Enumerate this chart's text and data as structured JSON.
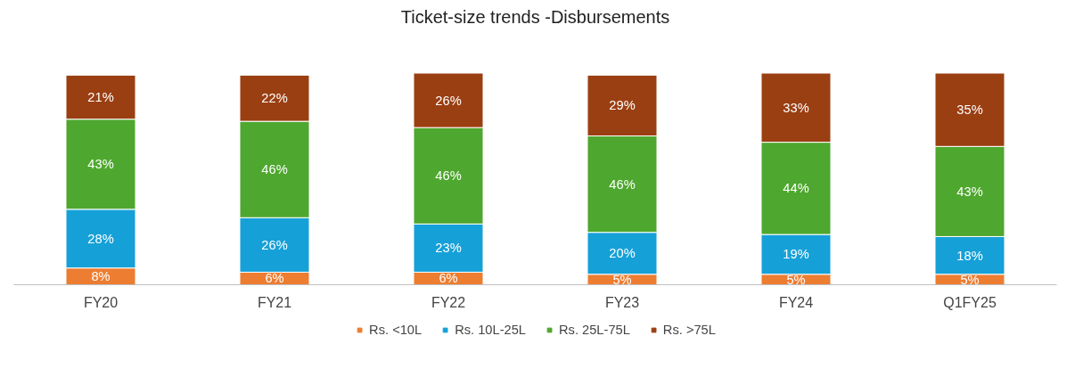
{
  "chart_data": {
    "type": "bar",
    "title": "Ticket-size trends -Disbursements",
    "stacked": true,
    "legend": "bottom",
    "categories": [
      "FY20",
      "FY21",
      "FY22",
      "FY23",
      "FY24",
      "Q1FY25"
    ],
    "series": [
      {
        "name": "Rs. <10L",
        "color": "#ed7d31",
        "values": [
          8,
          6,
          6,
          5,
          5,
          5
        ],
        "value_labels": [
          "8%",
          "6%",
          "6%",
          "5%",
          "5%",
          "5%"
        ]
      },
      {
        "name": "Rs. 10L-25L",
        "color": "#16a0d8",
        "values": [
          28,
          26,
          23,
          20,
          19,
          18
        ],
        "value_labels": [
          "28%",
          "26%",
          "23%",
          "20%",
          "19%",
          "18%"
        ]
      },
      {
        "name": "Rs. 25L-75L",
        "color": "#4ea72e",
        "values": [
          43,
          46,
          46,
          46,
          44,
          43
        ],
        "value_labels": [
          "43%",
          "46%",
          "46%",
          "46%",
          "44%",
          "43%"
        ]
      },
      {
        "name": "Rs. >75L",
        "color": "#9a3f12",
        "values": [
          21,
          22,
          26,
          29,
          33,
          35
        ],
        "value_labels": [
          "21%",
          "22%",
          "26%",
          "29%",
          "33%",
          "35%"
        ]
      }
    ]
  }
}
